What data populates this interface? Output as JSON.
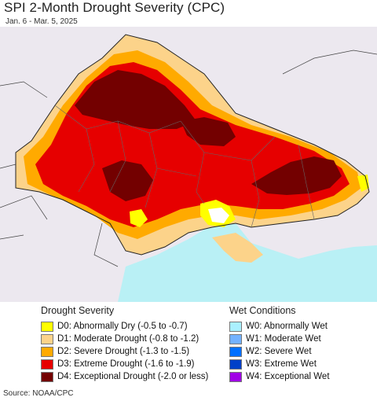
{
  "header": {
    "title": "SPI 2-Month Drought Severity (CPC)",
    "subtitle": "Jan. 6 - Mar. 5, 2025"
  },
  "colors": {
    "land_background": "#ece8ef",
    "sea": "#b9f0f5",
    "D0": "#ffff00",
    "D1": "#fcd38a",
    "D2": "#ffaa00",
    "D3": "#e60000",
    "D4": "#730000",
    "W0": "#aaf0ff",
    "W1": "#73b2ff",
    "W2": "#0070ff",
    "W3": "#0040c8",
    "W4": "#a000e6"
  },
  "legend": {
    "drought": {
      "title": "Drought Severity",
      "items": [
        {
          "code": "D0",
          "label": "D0: Abnormally Dry (-0.5 to -0.7)",
          "color": "#ffff00"
        },
        {
          "code": "D1",
          "label": "D1: Moderate Drought (-0.8 to -1.2)",
          "color": "#fcd38a"
        },
        {
          "code": "D2",
          "label": "D2: Severe Drought (-1.3 to -1.5)",
          "color": "#ffaa00"
        },
        {
          "code": "D3",
          "label": "D3: Extreme Drought (-1.6 to -1.9)",
          "color": "#e60000"
        },
        {
          "code": "D4",
          "label": "D4: Exceptional Drought (-2.0 or less)",
          "color": "#730000"
        }
      ]
    },
    "wet": {
      "title": "Wet Conditions",
      "items": [
        {
          "code": "W0",
          "label": "W0: Abnormally Wet",
          "color": "#aaf0ff"
        },
        {
          "code": "W1",
          "label": "W1: Moderate Wet",
          "color": "#73b2ff"
        },
        {
          "code": "W2",
          "label": "W2: Severe Wet",
          "color": "#0070ff"
        },
        {
          "code": "W3",
          "label": "W3: Extreme Wet",
          "color": "#0040c8"
        },
        {
          "code": "W4",
          "label": "W4: Exceptional Wet",
          "color": "#a000e6"
        }
      ]
    }
  },
  "footer": {
    "source": "Source: NOAA/CPC"
  }
}
